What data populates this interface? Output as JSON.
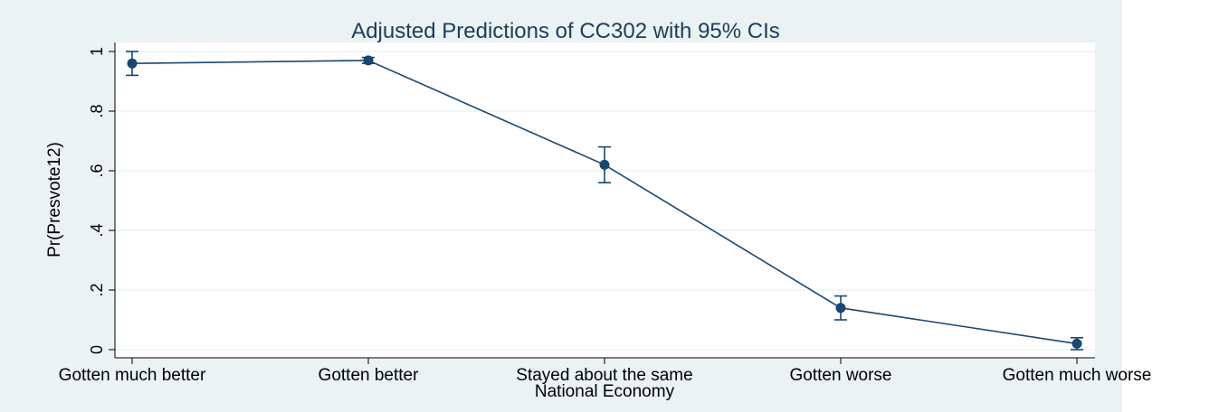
{
  "colors": {
    "outer_background": "#eaf2f3",
    "plot_background": "#ffffff",
    "grid": "#eaf2f3",
    "series": "#1a476f",
    "text": "#000000",
    "title": "#1e3d5a"
  },
  "chart_data": {
    "type": "line",
    "title": "Adjusted Predictions of CC302 with 95% CIs",
    "xlabel": "National Economy",
    "ylabel": "Pr(Presvote12)",
    "categories": [
      "Gotten much better",
      "Gotten better",
      "Stayed about the same",
      "Gotten worse",
      "Gotten much worse"
    ],
    "values": [
      0.96,
      0.97,
      0.62,
      0.14,
      0.02
    ],
    "ci_lower": [
      0.92,
      0.96,
      0.56,
      0.1,
      0.0
    ],
    "ci_upper": [
      1.0,
      0.98,
      0.68,
      0.18,
      0.04
    ],
    "ylim": [
      0,
      1
    ],
    "yticks": [
      0,
      0.2,
      0.4,
      0.6,
      0.8,
      1
    ],
    "ytick_labels": [
      "0",
      ".2",
      ".4",
      ".6",
      ".8",
      "1"
    ],
    "grid": true,
    "legend": false
  }
}
